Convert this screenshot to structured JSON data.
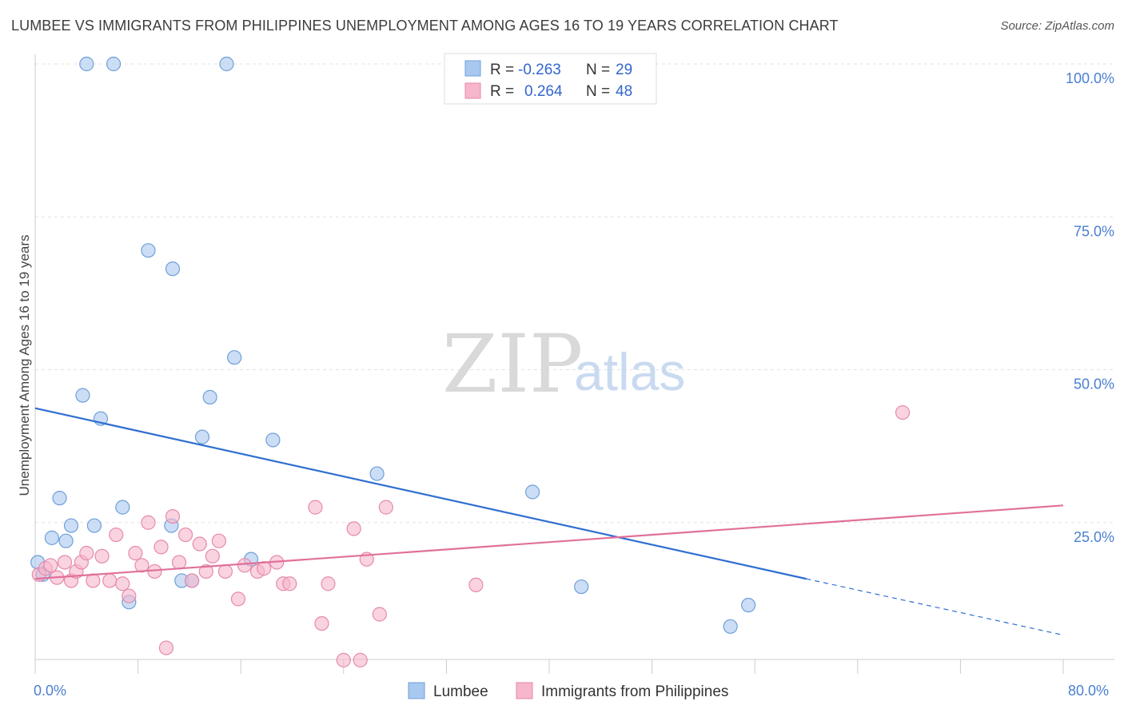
{
  "header": {
    "title": "LUMBEE VS IMMIGRANTS FROM PHILIPPINES UNEMPLOYMENT AMONG AGES 16 TO 19 YEARS CORRELATION CHART",
    "source": "Source: ZipAtlas.com"
  },
  "watermark": {
    "zip": "ZIP",
    "atlas": "atlas"
  },
  "legend_box": {
    "rows": [
      {
        "r_label": "R = ",
        "r_value": "-0.263",
        "n_label": "N = ",
        "n_value": "29",
        "color": "#a9c8f0"
      },
      {
        "r_label": "R = ",
        "r_value": "0.264",
        "n_label": "N = ",
        "n_value": "48",
        "color": "#f6b6cb"
      }
    ]
  },
  "chart_data": {
    "type": "scatter",
    "title": "LUMBEE VS IMMIGRANTS FROM PHILIPPINES UNEMPLOYMENT AMONG AGES 16 TO 19 YEARS CORRELATION CHART",
    "xlabel": "",
    "ylabel": "Unemployment Among Ages 16 to 19 years",
    "xlim": [
      0,
      80
    ],
    "ylim": [
      0,
      105
    ],
    "x_tick_labels": [
      "0.0%",
      "80.0%"
    ],
    "y_ticks": [
      25,
      50,
      75,
      100
    ],
    "y_tick_labels": [
      "25.0%",
      "50.0%",
      "75.0%",
      "100.0%"
    ],
    "grid": true,
    "legend_position": "bottom",
    "series": [
      {
        "name": "Lumbee",
        "color": "#a9c8f0",
        "stroke": "#6f9fd8",
        "line_color": "#2f6fd0",
        "trend": {
          "x0": 0,
          "y0": 43.7,
          "x1": 60,
          "y1": 15.8,
          "dash_to_x": 80,
          "dash_to_y": 6.6
        },
        "points": [
          [
            0.2,
            18.5
          ],
          [
            0.6,
            16.5
          ],
          [
            1.3,
            22.5
          ],
          [
            1.9,
            29.0
          ],
          [
            2.4,
            22.0
          ],
          [
            2.8,
            24.5
          ],
          [
            3.7,
            45.8
          ],
          [
            4.0,
            100.0
          ],
          [
            4.6,
            24.5
          ],
          [
            5.1,
            42.0
          ],
          [
            6.1,
            100.0
          ],
          [
            6.8,
            27.5
          ],
          [
            7.3,
            12.0
          ],
          [
            8.8,
            69.5
          ],
          [
            10.6,
            24.5
          ],
          [
            10.7,
            66.5
          ],
          [
            11.4,
            15.5
          ],
          [
            12.2,
            15.5
          ],
          [
            13.0,
            39.0
          ],
          [
            13.6,
            45.5
          ],
          [
            14.9,
            100.0
          ],
          [
            15.5,
            52.0
          ],
          [
            16.8,
            19.0
          ],
          [
            18.5,
            38.5
          ],
          [
            26.6,
            33.0
          ],
          [
            38.7,
            30.0
          ],
          [
            42.5,
            14.5
          ],
          [
            54.1,
            8.0
          ],
          [
            55.5,
            11.5
          ]
        ]
      },
      {
        "name": "Immigrants from Philippines",
        "color": "#f6b6cb",
        "stroke": "#e58aab",
        "line_color": "#e0709a",
        "trend": {
          "x0": 0,
          "y0": 15.8,
          "x1": 80,
          "y1": 27.8
        },
        "points": [
          [
            0.3,
            16.5
          ],
          [
            0.8,
            17.5
          ],
          [
            1.2,
            18.0
          ],
          [
            1.7,
            16.0
          ],
          [
            2.3,
            18.5
          ],
          [
            2.8,
            15.5
          ],
          [
            3.2,
            17.0
          ],
          [
            3.6,
            18.5
          ],
          [
            4.0,
            20.0
          ],
          [
            4.5,
            15.5
          ],
          [
            5.2,
            19.5
          ],
          [
            5.8,
            15.5
          ],
          [
            6.3,
            23.0
          ],
          [
            6.8,
            15.0
          ],
          [
            7.3,
            13.0
          ],
          [
            7.8,
            20.0
          ],
          [
            8.3,
            18.0
          ],
          [
            8.8,
            25.0
          ],
          [
            9.3,
            17.0
          ],
          [
            9.8,
            21.0
          ],
          [
            10.2,
            4.5
          ],
          [
            10.7,
            26.0
          ],
          [
            11.2,
            18.5
          ],
          [
            11.7,
            23.0
          ],
          [
            12.2,
            15.5
          ],
          [
            12.8,
            21.5
          ],
          [
            13.3,
            17.0
          ],
          [
            13.8,
            19.5
          ],
          [
            14.3,
            22.0
          ],
          [
            14.8,
            17.0
          ],
          [
            15.8,
            12.5
          ],
          [
            16.3,
            18.0
          ],
          [
            17.3,
            17.0
          ],
          [
            17.8,
            17.5
          ],
          [
            18.8,
            18.5
          ],
          [
            19.3,
            15.0
          ],
          [
            19.8,
            15.0
          ],
          [
            21.8,
            27.5
          ],
          [
            22.3,
            8.5
          ],
          [
            22.8,
            15.0
          ],
          [
            24.0,
            2.5
          ],
          [
            24.8,
            24.0
          ],
          [
            25.3,
            2.5
          ],
          [
            25.8,
            19.0
          ],
          [
            26.8,
            10.0
          ],
          [
            27.3,
            27.5
          ],
          [
            34.3,
            14.8
          ],
          [
            67.5,
            43.0
          ]
        ]
      }
    ]
  }
}
